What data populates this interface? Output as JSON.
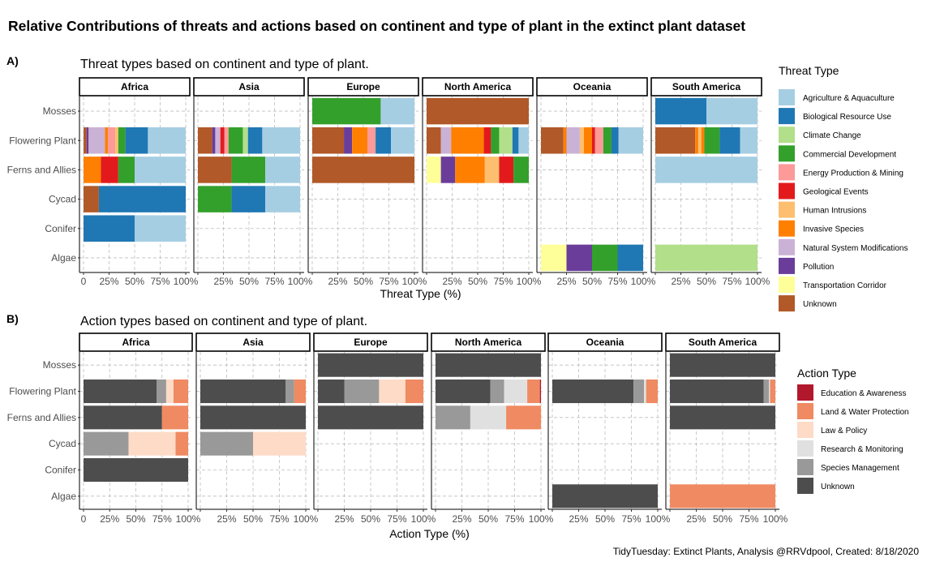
{
  "title": "Relative Contributions of threats and actions based on continent and type of plant in the extinct plant dataset",
  "caption": "TidyTuesday: Extinct Plants, Analysis @RRVdpool, Created: 8/18/2020",
  "colors": {
    "Agriculture & Aquaculture": "#a6cee3",
    "Biological Resource Use": "#1f78b4",
    "Climate Change": "#b2df8a",
    "Commercial Development": "#33a02c",
    "Energy Production & Mining": "#fb9a99",
    "Geological Events": "#e31a1c",
    "Human Intrusions": "#fdbf6f",
    "Invasive Species": "#ff7f00",
    "Natural System Modifications": "#cab2d6",
    "Pollution": "#6a3d9a",
    "Transportation Corridor": "#ffff99",
    "Unknown": "#b15928",
    "Education & Awareness": "#b2182b",
    "Land & Water Protection": "#ef8a62",
    "Law & Policy": "#fddbc7",
    "Research & Monitoring": "#e0e0e0",
    "Species Management": "#999999",
    "Unknown (action)": "#4d4d4d"
  },
  "chart_data": [
    {
      "type": "bar",
      "orientation": "horizontal",
      "stacked": "percent",
      "panel_label": "A)",
      "title": "Threat types based on continent and type of plant.",
      "xlabel": "Threat Type (%)",
      "ylabel": "",
      "xlim": [
        0,
        100
      ],
      "x_ticks": [
        "0",
        "25%",
        "50%",
        "75%",
        "100%"
      ],
      "grid": true,
      "legend_title": "Threat Type",
      "legend_position": "right",
      "legend": [
        "Agriculture & Aquaculture",
        "Biological Resource Use",
        "Climate Change",
        "Commercial Development",
        "Energy Production & Mining",
        "Geological Events",
        "Human Intrusions",
        "Invasive Species",
        "Natural System Modifications",
        "Pollution",
        "Transportation Corridor",
        "Unknown"
      ],
      "facets": [
        "Africa",
        "Asia",
        "Europe",
        "North America",
        "Oceania",
        "South America"
      ],
      "categories": [
        "Mosses",
        "Flowering Plant",
        "Ferns and Allies",
        "Cycad",
        "Conifer",
        "Algae"
      ],
      "bars": {
        "Africa": {
          "Flowering Plant": [
            [
              "Unknown",
              3
            ],
            [
              "Pollution",
              2
            ],
            [
              "Natural System Modifications",
              16
            ],
            [
              "Invasive Species",
              3
            ],
            [
              "Energy Production & Mining",
              7
            ],
            [
              "Human Intrusions",
              3
            ],
            [
              "Commercial Development",
              7
            ],
            [
              "Biological Resource Use",
              22
            ],
            [
              "Agriculture & Aquaculture",
              37
            ]
          ],
          "Ferns and Allies": [
            [
              "Invasive Species",
              17
            ],
            [
              "Geological Events",
              17
            ],
            [
              "Commercial Development",
              16
            ],
            [
              "Agriculture & Aquaculture",
              50
            ]
          ],
          "Cycad": [
            [
              "Unknown",
              15
            ],
            [
              "Biological Resource Use",
              85
            ]
          ],
          "Conifer": [
            [
              "Biological Resource Use",
              50
            ],
            [
              "Agriculture & Aquaculture",
              50
            ]
          ]
        },
        "Asia": {
          "Flowering Plant": [
            [
              "Unknown",
              14
            ],
            [
              "Pollution",
              3
            ],
            [
              "Natural System Modifications",
              5
            ],
            [
              "Geological Events",
              4
            ],
            [
              "Energy Production & Mining",
              4
            ],
            [
              "Commercial Development",
              14
            ],
            [
              "Climate Change",
              5
            ],
            [
              "Biological Resource Use",
              14
            ],
            [
              "Agriculture & Aquaculture",
              37
            ]
          ],
          "Ferns and Allies": [
            [
              "Unknown",
              33
            ],
            [
              "Commercial Development",
              33
            ],
            [
              "Agriculture & Aquaculture",
              34
            ]
          ],
          "Cycad": [
            [
              "Commercial Development",
              33
            ],
            [
              "Biological Resource Use",
              33
            ],
            [
              "Agriculture & Aquaculture",
              34
            ]
          ]
        },
        "Europe": {
          "Mosses": [
            [
              "Commercial Development",
              67
            ],
            [
              "Agriculture & Aquaculture",
              33
            ]
          ],
          "Flowering Plant": [
            [
              "Unknown",
              31
            ],
            [
              "Pollution",
              8
            ],
            [
              "Invasive Species",
              15
            ],
            [
              "Energy Production & Mining",
              8
            ],
            [
              "Biological Resource Use",
              15
            ],
            [
              "Agriculture & Aquaculture",
              23
            ]
          ],
          "Ferns and Allies": [
            [
              "Unknown",
              100
            ]
          ]
        },
        "North America": {
          "Mosses": [
            [
              "Unknown",
              100
            ]
          ],
          "Flowering Plant": [
            [
              "Unknown",
              14
            ],
            [
              "Natural System Modifications",
              10
            ],
            [
              "Invasive Species",
              32
            ],
            [
              "Geological Events",
              7
            ],
            [
              "Commercial Development",
              8
            ],
            [
              "Climate Change",
              13
            ],
            [
              "Biological Resource Use",
              6
            ],
            [
              "Agriculture & Aquaculture",
              10
            ]
          ],
          "Ferns and Allies": [
            [
              "Transportation Corridor",
              14
            ],
            [
              "Pollution",
              14
            ],
            [
              "Invasive Species",
              29
            ],
            [
              "Human Intrusions",
              14
            ],
            [
              "Geological Events",
              14
            ],
            [
              "Commercial Development",
              15
            ]
          ]
        },
        "Oceania": {
          "Flowering Plant": [
            [
              "Unknown",
              22
            ],
            [
              "Invasive Species",
              3
            ],
            [
              "Natural System Modifications",
              13
            ],
            [
              "Human Intrusions",
              4
            ],
            [
              "Invasive Species",
              8
            ],
            [
              "Geological Events",
              3
            ],
            [
              "Energy Production & Mining",
              8
            ],
            [
              "Commercial Development",
              8
            ],
            [
              "Biological Resource Use",
              7
            ],
            [
              "Agriculture & Aquaculture",
              24
            ]
          ],
          "Algae": [
            [
              "Transportation Corridor",
              25
            ],
            [
              "Pollution",
              25
            ],
            [
              "Commercial Development",
              25
            ],
            [
              "Biological Resource Use",
              25
            ]
          ]
        },
        "South America": {
          "Mosses": [
            [
              "Biological Resource Use",
              50
            ],
            [
              "Agriculture & Aquaculture",
              50
            ]
          ],
          "Flowering Plant": [
            [
              "Unknown",
              39
            ],
            [
              "Invasive Species",
              3
            ],
            [
              "Human Intrusions",
              3
            ],
            [
              "Invasive Species",
              3
            ],
            [
              "Commercial Development",
              15
            ],
            [
              "Biological Resource Use",
              20
            ],
            [
              "Agriculture & Aquaculture",
              17
            ]
          ],
          "Ferns and Allies": [
            [
              "Agriculture & Aquaculture",
              100
            ]
          ],
          "Algae": [
            [
              "Climate Change",
              100
            ]
          ]
        }
      }
    },
    {
      "type": "bar",
      "orientation": "horizontal",
      "stacked": "percent",
      "panel_label": "B)",
      "title": "Action types based on continent and type of plant.",
      "xlabel": "Action Type (%)",
      "ylabel": "",
      "xlim": [
        0,
        100
      ],
      "x_ticks": [
        "0",
        "25%",
        "50%",
        "75%",
        "100%"
      ],
      "grid": true,
      "legend_title": "Action Type",
      "legend_position": "right",
      "legend": [
        "Education & Awareness",
        "Land & Water Protection",
        "Law & Policy",
        "Research & Monitoring",
        "Species Management",
        "Unknown"
      ],
      "facets": [
        "Africa",
        "Asia",
        "Europe",
        "North America",
        "Oceania",
        "South America"
      ],
      "categories": [
        "Mosses",
        "Flowering Plant",
        "Ferns and Allies",
        "Cycad",
        "Conifer",
        "Algae"
      ],
      "bars": {
        "Africa": {
          "Flowering Plant": [
            [
              "Unknown (action)",
              70
            ],
            [
              "Species Management",
              9
            ],
            [
              "Law & Policy",
              7
            ],
            [
              "Land & Water Protection",
              14
            ]
          ],
          "Ferns and Allies": [
            [
              "Unknown (action)",
              75
            ],
            [
              "Land & Water Protection",
              25
            ]
          ],
          "Cycad": [
            [
              "Species Management",
              43
            ],
            [
              "Law & Policy",
              45
            ],
            [
              "Land & Water Protection",
              12
            ]
          ],
          "Conifer": [
            [
              "Unknown (action)",
              100
            ]
          ]
        },
        "Asia": {
          "Flowering Plant": [
            [
              "Unknown (action)",
              81
            ],
            [
              "Species Management",
              8
            ],
            [
              "Land & Water Protection",
              11
            ]
          ],
          "Ferns and Allies": [
            [
              "Unknown (action)",
              100
            ]
          ],
          "Cycad": [
            [
              "Species Management",
              50
            ],
            [
              "Law & Policy",
              50
            ]
          ]
        },
        "Europe": {
          "Mosses": [
            [
              "Unknown (action)",
              100
            ]
          ],
          "Flowering Plant": [
            [
              "Unknown (action)",
              25
            ],
            [
              "Species Management",
              33
            ],
            [
              "Law & Policy",
              25
            ],
            [
              "Land & Water Protection",
              17
            ]
          ],
          "Ferns and Allies": [
            [
              "Unknown (action)",
              100
            ]
          ]
        },
        "North America": {
          "Mosses": [
            [
              "Unknown (action)",
              100
            ]
          ],
          "Flowering Plant": [
            [
              "Unknown (action)",
              52
            ],
            [
              "Species Management",
              13
            ],
            [
              "Research & Monitoring",
              22
            ],
            [
              "Land & Water Protection",
              12
            ],
            [
              "Education & Awareness",
              1
            ]
          ],
          "Ferns and Allies": [
            [
              "Species Management",
              33
            ],
            [
              "Research & Monitoring",
              34
            ],
            [
              "Land & Water Protection",
              33
            ]
          ]
        },
        "Oceania": {
          "Flowering Plant": [
            [
              "Unknown (action)",
              77
            ],
            [
              "Species Management",
              10
            ],
            [
              "Research & Monitoring",
              2
            ],
            [
              "Land & Water Protection",
              11
            ]
          ],
          "Algae": [
            [
              "Unknown (action)",
              100
            ]
          ]
        },
        "South America": {
          "Mosses": [
            [
              "Unknown (action)",
              100
            ]
          ],
          "Flowering Plant": [
            [
              "Unknown (action)",
              89
            ],
            [
              "Species Management",
              5
            ],
            [
              "Research & Monitoring",
              1
            ],
            [
              "Land & Water Protection",
              5
            ]
          ],
          "Ferns and Allies": [
            [
              "Unknown (action)",
              100
            ]
          ],
          "Algae": [
            [
              "Land & Water Protection",
              100
            ]
          ]
        }
      }
    }
  ]
}
